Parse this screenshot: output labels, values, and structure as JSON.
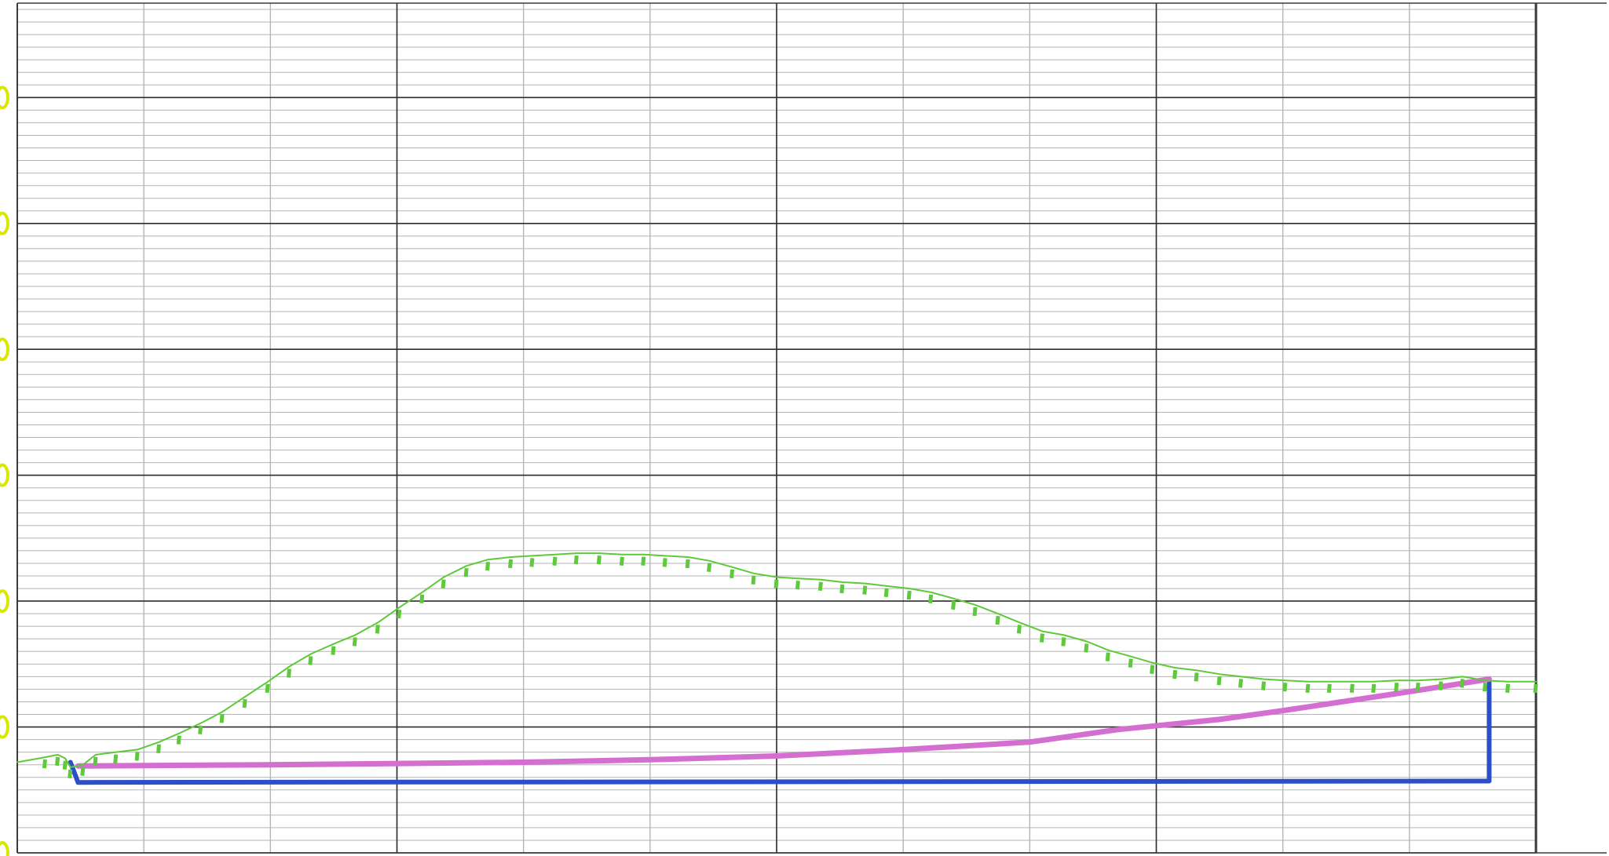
{
  "view": {
    "type": "profile-section"
  },
  "colors": {
    "background": "#ffffff",
    "minor_grid": "#b5b5b5",
    "major_grid": "#2e2e2e",
    "frame": "#3a3a3a",
    "axis_markers": "#d8e800",
    "ground_surface": "#5ec93a",
    "design_line": "#d46ed0",
    "section_outline": "#2b4fc8"
  },
  "chart_data": {
    "type": "line",
    "xlim": [
      0,
      12
    ],
    "ylim": [
      0,
      6.75
    ],
    "grid": {
      "major_x": 3,
      "minor_x": 1,
      "major_y": 1,
      "minor_y": 0.1
    },
    "series": [
      {
        "key": "ground_surface",
        "x": [
          0,
          0.22,
          0.32,
          0.38,
          0.42,
          0.52,
          0.62,
          0.78,
          0.95,
          1.12,
          1.28,
          1.45,
          1.62,
          1.8,
          1.98,
          2.15,
          2.32,
          2.5,
          2.67,
          2.85,
          3.02,
          3.2,
          3.37,
          3.55,
          3.72,
          3.9,
          4.07,
          4.25,
          4.42,
          4.6,
          4.78,
          4.95,
          5.12,
          5.3,
          5.47,
          5.65,
          5.82,
          6.0,
          6.17,
          6.35,
          6.52,
          6.7,
          6.87,
          7.05,
          7.22,
          7.4,
          7.57,
          7.75,
          7.92,
          8.1,
          8.27,
          8.45,
          8.62,
          8.8,
          8.97,
          9.15,
          9.32,
          9.5,
          9.67,
          9.85,
          10.02,
          10.2,
          10.37,
          10.55,
          10.72,
          10.9,
          11.07,
          11.25,
          11.42,
          11.6,
          11.78,
          12.0
        ],
        "y": [
          0.72,
          0.76,
          0.78,
          0.75,
          0.68,
          0.7,
          0.78,
          0.8,
          0.82,
          0.88,
          0.95,
          1.03,
          1.12,
          1.24,
          1.36,
          1.48,
          1.58,
          1.66,
          1.73,
          1.83,
          1.95,
          2.07,
          2.19,
          2.28,
          2.33,
          2.35,
          2.36,
          2.37,
          2.38,
          2.38,
          2.37,
          2.37,
          2.36,
          2.35,
          2.32,
          2.27,
          2.22,
          2.19,
          2.18,
          2.17,
          2.15,
          2.14,
          2.12,
          2.1,
          2.07,
          2.02,
          1.97,
          1.9,
          1.83,
          1.76,
          1.73,
          1.68,
          1.61,
          1.56,
          1.51,
          1.47,
          1.45,
          1.42,
          1.4,
          1.38,
          1.37,
          1.36,
          1.36,
          1.36,
          1.36,
          1.37,
          1.37,
          1.38,
          1.4,
          1.37,
          1.36,
          1.36
        ]
      },
      {
        "key": "design_line",
        "x": [
          0.48,
          2,
          4,
          5,
          6,
          7,
          8,
          8.7,
          9.5,
          10,
          11,
          11.63
        ],
        "y": [
          0.69,
          0.7,
          0.72,
          0.74,
          0.77,
          0.82,
          0.88,
          0.98,
          1.06,
          1.13,
          1.28,
          1.38
        ]
      },
      {
        "key": "section_outline",
        "x": [
          0.42,
          0.48,
          11.57,
          11.63,
          11.63
        ],
        "y": [
          0.72,
          0.56,
          0.57,
          0.57,
          1.38
        ]
      }
    ]
  }
}
